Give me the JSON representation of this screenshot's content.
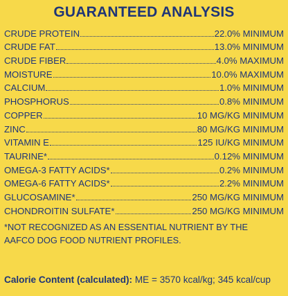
{
  "title": "GUARANTEED ANALYSIS",
  "rows": [
    {
      "name": "CRUDE PROTEIN",
      "value": "22.0% MINIMUM"
    },
    {
      "name": "CRUDE FAT",
      "value": "13.0% MINIMUM"
    },
    {
      "name": "CRUDE FIBER",
      "value": "4.0% MAXIMUM"
    },
    {
      "name": "MOISTURE",
      "value": "10.0% MAXIMUM"
    },
    {
      "name": "CALCIUM",
      "value": "1.0% MINIMUM"
    },
    {
      "name": "PHOSPHORUS",
      "value": "0.8% MINIMUM"
    },
    {
      "name": "COPPER",
      "value": "10 mg/kg MINIMUM"
    },
    {
      "name": "ZINC",
      "value": "80 mg/kg MINIMUM"
    },
    {
      "name": "VITAMIN E",
      "value": "125 IU/KG MINIMUM"
    },
    {
      "name": "TAURINE*",
      "value": "0.12% MINIMUM"
    },
    {
      "name": "OMEGA-3 FATTY ACIDS*",
      "value": "0.2% MINIMUM"
    },
    {
      "name": "OMEGA-6 FATTY ACIDS*",
      "value": "2.2% MINIMUM"
    },
    {
      "name": "GLUCOSAMINE*",
      "value": "250 mg/kg MINIMUM"
    },
    {
      "name": "CHONDROITIN SULFATE*",
      "value": "250 mg/kg MINIMUM"
    }
  ],
  "footnote": "*NOT RECOGNIZED AS AN ESSENTIAL NUTRIENT BY THE AAFCO DOG FOOD NUTRIENT PROFILES.",
  "calorie": {
    "label": "Calorie Content (calculated):",
    "value": "ME = 3570 kcal/kg; 345 kcal/cup"
  }
}
